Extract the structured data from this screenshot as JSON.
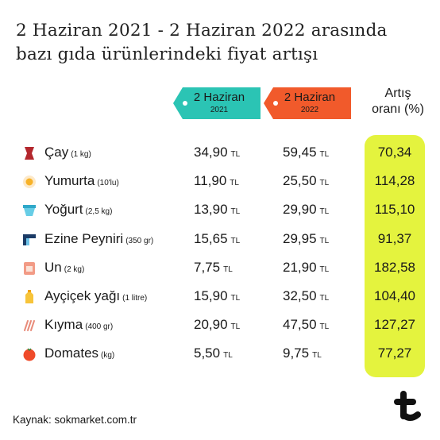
{
  "title": {
    "line1": "2 Haziran 2021 - 2 Haziran 2022 arasında",
    "line2": "bazı gıda ürünlerindeki fiyat artışı"
  },
  "columns": {
    "col2021": {
      "main": "2 Haziran",
      "sub": "2021",
      "color": "#2bc4b4"
    },
    "col2022": {
      "main": "2 Haziran",
      "sub": "2022",
      "color": "#f15a2b"
    },
    "rate": {
      "line1": "Artış",
      "line2": "oranı (%)",
      "highlight_color": "#e4f33e"
    }
  },
  "currency": "TL",
  "rows": [
    {
      "name": "Çay",
      "unit": "(1 kg)",
      "p2021": "34,90",
      "p2022": "59,45",
      "rate": "70,34",
      "icon": "tea-glass-icon"
    },
    {
      "name": "Yumurta",
      "unit": "(10'lu)",
      "p2021": "11,90",
      "p2022": "25,50",
      "rate": "114,28",
      "icon": "egg-icon"
    },
    {
      "name": "Yoğurt",
      "unit": "(2,5 kg)",
      "p2021": "13,90",
      "p2022": "29,90",
      "rate": "115,10",
      "icon": "yogurt-bowl-icon"
    },
    {
      "name": "Ezine Peyniri",
      "unit": "(350 gr)",
      "p2021": "15,65",
      "p2022": "29,95",
      "rate": "91,37",
      "icon": "cheese-icon"
    },
    {
      "name": "Un",
      "unit": "(2 kg)",
      "p2021": "7,75",
      "p2022": "21,90",
      "rate": "182,58",
      "icon": "flour-bag-icon"
    },
    {
      "name": "Ayçiçek yağı",
      "unit": "(1 litre)",
      "p2021": "15,90",
      "p2022": "32,50",
      "rate": "104,40",
      "icon": "oil-bottle-icon"
    },
    {
      "name": "Kıyma",
      "unit": "(400 gr)",
      "p2021": "20,90",
      "p2022": "47,50",
      "rate": "127,27",
      "icon": "minced-meat-icon"
    },
    {
      "name": "Domates",
      "unit": "(kg)",
      "p2021": "5,50",
      "p2022": "9,75",
      "rate": "77,27",
      "icon": "tomato-icon"
    }
  ],
  "source": "Kaynak: sokmarket.com.tr",
  "chart_data": {
    "type": "table",
    "columns": [
      "2 Haziran 2021",
      "2 Haziran 2022",
      "Artış oranı (%)"
    ],
    "rows": [
      {
        "item": "Çay (1 kg)",
        "values": [
          34.9,
          59.45,
          70.34
        ]
      },
      {
        "item": "Yumurta (10'lu)",
        "values": [
          11.9,
          25.5,
          114.28
        ]
      },
      {
        "item": "Yoğurt (2,5 kg)",
        "values": [
          13.9,
          29.9,
          115.1
        ]
      },
      {
        "item": "Ezine Peyniri (350 gr)",
        "values": [
          15.65,
          29.95,
          91.37
        ]
      },
      {
        "item": "Un (2 kg)",
        "values": [
          7.75,
          21.9,
          182.58
        ]
      },
      {
        "item": "Ayçiçek yağı (1 litre)",
        "values": [
          15.9,
          32.5,
          104.4
        ]
      },
      {
        "item": "Kıyma (400 gr)",
        "values": [
          20.9,
          47.5,
          127.27
        ]
      },
      {
        "item": "Domates (kg)",
        "values": [
          5.5,
          9.75,
          77.27
        ]
      }
    ]
  }
}
